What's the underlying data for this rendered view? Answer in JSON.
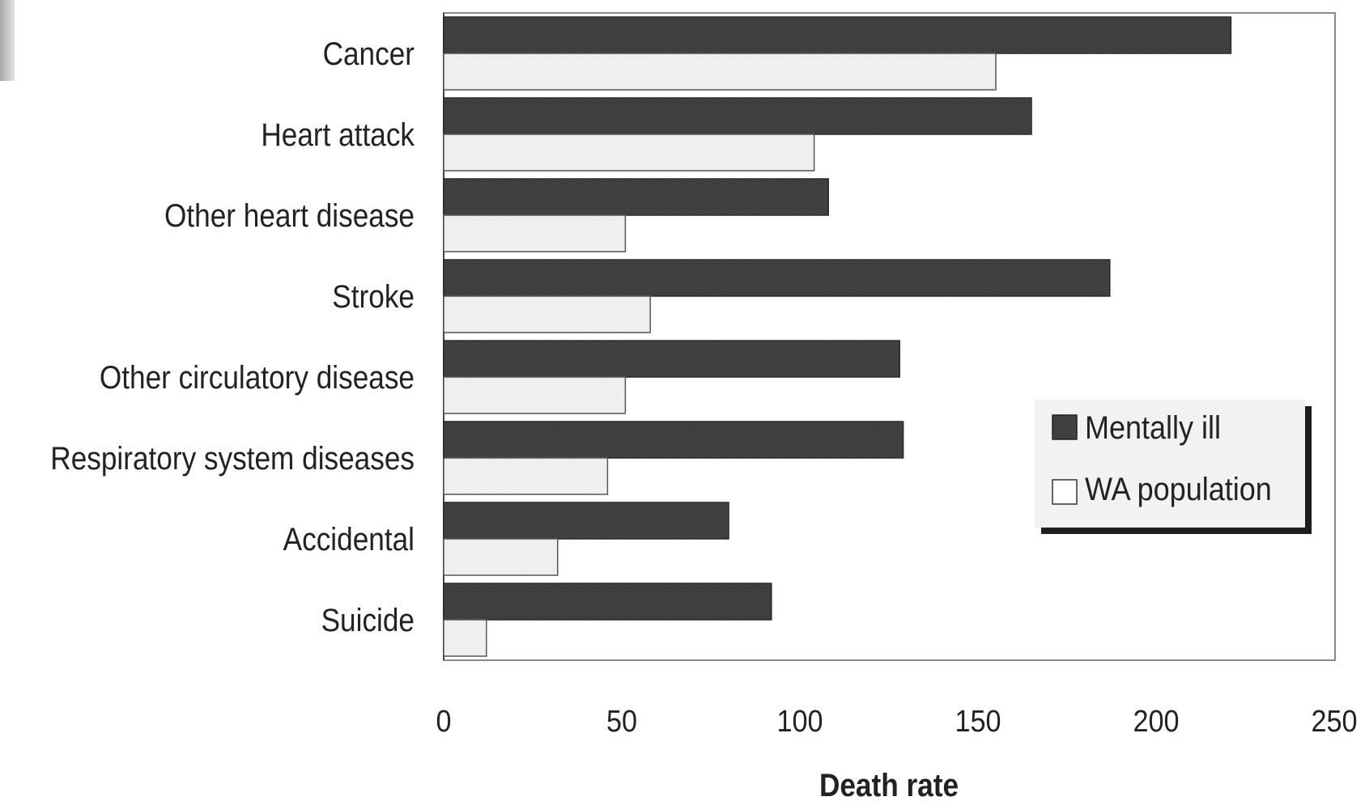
{
  "chart_data": {
    "type": "bar",
    "orientation": "horizontal",
    "categories": [
      "Cancer",
      "Heart attack",
      "Other heart disease",
      "Stroke",
      "Other circulatory disease",
      "Respiratory system diseases",
      "Accidental",
      "Suicide"
    ],
    "series": [
      {
        "name": "Mentally ill",
        "color": "#3c3c3c",
        "values": [
          221,
          165,
          108,
          187,
          128,
          129,
          80,
          92
        ]
      },
      {
        "name": "WA population",
        "color": "#f0f0f0",
        "values": [
          155,
          104,
          51,
          58,
          51,
          46,
          32,
          12
        ]
      }
    ],
    "xlabel": "Death rate",
    "xlim": [
      0,
      250
    ],
    "xticks": [
      0,
      50,
      100,
      150,
      200,
      250
    ],
    "tick_labels": [
      "0",
      "50",
      "100",
      "150",
      "200",
      "250"
    ],
    "grid": false,
    "legend_position": "right"
  }
}
